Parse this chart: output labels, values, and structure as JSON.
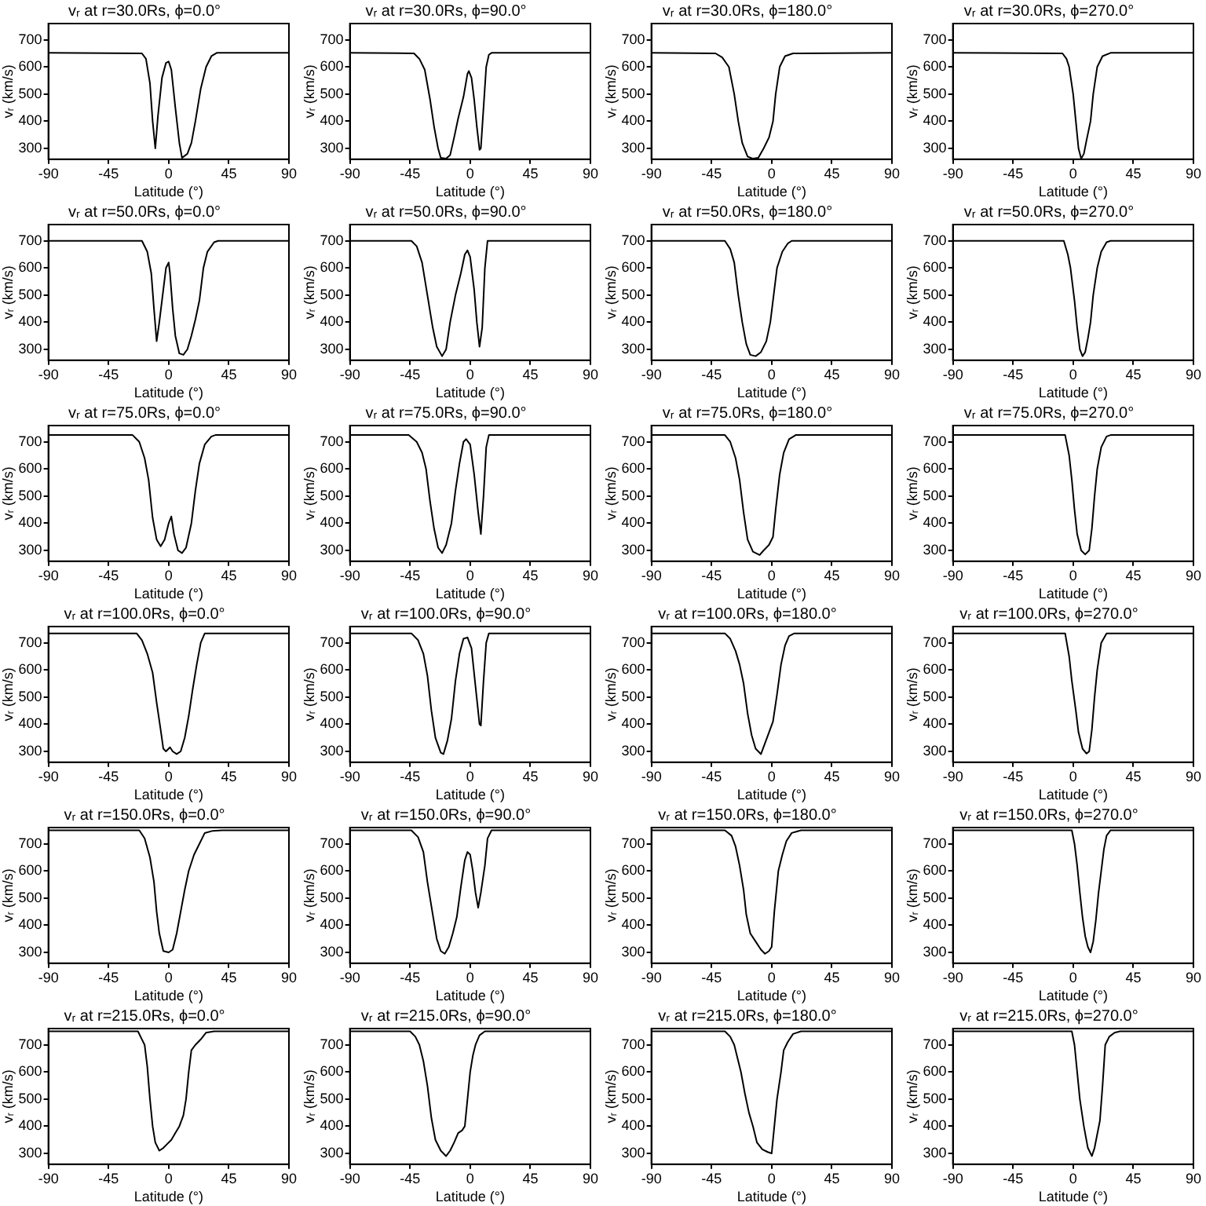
{
  "chart_data": [
    {
      "type": "line",
      "title": "vᵣ at r=30.0Rs, ϕ=0.0°",
      "xlabel": "Latitude (°)",
      "ylabel": "vᵣ (km/s)",
      "color": "#000000",
      "grid": false,
      "xlim": [
        -90,
        90
      ],
      "ylim": [
        260,
        760
      ],
      "xticks": [
        -90,
        -45,
        0,
        45,
        90
      ],
      "yticks": [
        300,
        400,
        500,
        600,
        700
      ],
      "x": [
        -90,
        -20,
        -17,
        -14,
        -12,
        -10,
        -8,
        -5,
        -2,
        0,
        2,
        5,
        8,
        10,
        14,
        17,
        20,
        24,
        28,
        32,
        36,
        90
      ],
      "values": [
        652,
        650,
        630,
        540,
        400,
        300,
        420,
        560,
        615,
        620,
        590,
        450,
        320,
        265,
        280,
        320,
        400,
        520,
        600,
        640,
        652,
        652
      ]
    },
    {
      "type": "line",
      "title": "vᵣ at r=30.0Rs, ϕ=90.0°",
      "xlabel": "Latitude (°)",
      "ylabel": "vᵣ (km/s)",
      "color": "#000000",
      "grid": false,
      "xlim": [
        -90,
        90
      ],
      "ylim": [
        260,
        760
      ],
      "xticks": [
        -90,
        -45,
        0,
        45,
        90
      ],
      "yticks": [
        300,
        400,
        500,
        600,
        700
      ],
      "x": [
        -90,
        -42,
        -38,
        -34,
        -30,
        -27,
        -24,
        -22,
        -18,
        -15,
        -12,
        -9,
        -5,
        -2,
        -1,
        1,
        3,
        5,
        7,
        8,
        10,
        12,
        14,
        16,
        90
      ],
      "values": [
        652,
        650,
        630,
        590,
        480,
        380,
        300,
        265,
        262,
        275,
        340,
        410,
        490,
        575,
        585,
        560,
        480,
        380,
        295,
        300,
        450,
        600,
        645,
        652,
        652
      ]
    },
    {
      "type": "line",
      "title": "vᵣ at r=30.0Rs, ϕ=180.0°",
      "xlabel": "Latitude (°)",
      "ylabel": "vᵣ (km/s)",
      "color": "#000000",
      "grid": false,
      "xlim": [
        -90,
        90
      ],
      "ylim": [
        260,
        760
      ],
      "xticks": [
        -90,
        -45,
        0,
        45,
        90
      ],
      "yticks": [
        300,
        400,
        500,
        600,
        700
      ],
      "x": [
        -90,
        -42,
        -37,
        -32,
        -28,
        -25,
        -22,
        -18,
        -14,
        -10,
        -6,
        -2,
        1,
        3,
        6,
        10,
        16,
        90
      ],
      "values": [
        652,
        650,
        635,
        600,
        500,
        400,
        320,
        270,
        262,
        265,
        300,
        340,
        400,
        500,
        600,
        640,
        650,
        652
      ]
    },
    {
      "type": "line",
      "title": "vᵣ at r=30.0Rs, ϕ=270.0°",
      "xlabel": "Latitude (°)",
      "ylabel": "vᵣ (km/s)",
      "color": "#000000",
      "grid": false,
      "xlim": [
        -90,
        90
      ],
      "ylim": [
        260,
        760
      ],
      "xticks": [
        -90,
        -45,
        0,
        45,
        90
      ],
      "yticks": [
        300,
        400,
        500,
        600,
        700
      ],
      "x": [
        -90,
        -8,
        -5,
        -3,
        0,
        2,
        4,
        6,
        8,
        10,
        13,
        15,
        18,
        22,
        28,
        90
      ],
      "values": [
        652,
        650,
        630,
        600,
        500,
        400,
        300,
        262,
        280,
        330,
        400,
        500,
        600,
        640,
        652,
        652
      ]
    },
    {
      "type": "line",
      "title": "vᵣ at r=50.0Rs, ϕ=0.0°",
      "xlabel": "Latitude (°)",
      "ylabel": "vᵣ (km/s)",
      "color": "#000000",
      "grid": false,
      "xlim": [
        -90,
        90
      ],
      "ylim": [
        260,
        760
      ],
      "xticks": [
        -90,
        -45,
        0,
        45,
        90
      ],
      "yticks": [
        300,
        400,
        500,
        600,
        700
      ],
      "x": [
        -90,
        -20,
        -16,
        -13,
        -11,
        -9,
        -7,
        -4,
        -2,
        0,
        1,
        3,
        5,
        8,
        11,
        14,
        17,
        20,
        23,
        26,
        29,
        34,
        37,
        90
      ],
      "values": [
        700,
        700,
        660,
        580,
        450,
        330,
        400,
        520,
        600,
        620,
        580,
        450,
        350,
        285,
        280,
        300,
        350,
        410,
        480,
        600,
        660,
        695,
        700,
        700
      ]
    },
    {
      "type": "line",
      "title": "vᵣ at r=50.0Rs, ϕ=90.0°",
      "xlabel": "Latitude (°)",
      "ylabel": "vᵣ (km/s)",
      "color": "#000000",
      "grid": false,
      "xlim": [
        -90,
        90
      ],
      "ylim": [
        260,
        760
      ],
      "xticks": [
        -90,
        -45,
        0,
        45,
        90
      ],
      "yticks": [
        300,
        400,
        500,
        600,
        700
      ],
      "x": [
        -90,
        -44,
        -40,
        -36,
        -32,
        -28,
        -25,
        -21,
        -18,
        -15,
        -11,
        -7,
        -4,
        -2,
        0,
        3,
        5,
        7,
        9,
        11,
        13,
        90
      ],
      "values": [
        700,
        700,
        680,
        620,
        500,
        380,
        310,
        275,
        300,
        400,
        500,
        580,
        650,
        665,
        640,
        520,
        400,
        310,
        380,
        600,
        700,
        700
      ]
    },
    {
      "type": "line",
      "title": "vᵣ at r=50.0Rs, ϕ=180.0°",
      "xlabel": "Latitude (°)",
      "ylabel": "vᵣ (km/s)",
      "color": "#000000",
      "grid": false,
      "xlim": [
        -90,
        90
      ],
      "ylim": [
        260,
        760
      ],
      "xticks": [
        -90,
        -45,
        0,
        45,
        90
      ],
      "yticks": [
        300,
        400,
        500,
        600,
        700
      ],
      "x": [
        -90,
        -35,
        -31,
        -28,
        -25,
        -22,
        -19,
        -16,
        -12,
        -8,
        -4,
        -1,
        2,
        4,
        8,
        12,
        15,
        90
      ],
      "values": [
        700,
        700,
        670,
        620,
        500,
        400,
        320,
        280,
        275,
        290,
        330,
        400,
        520,
        600,
        660,
        690,
        700,
        700
      ]
    },
    {
      "type": "line",
      "title": "vᵣ at r=50.0Rs, ϕ=270.0°",
      "xlabel": "Latitude (°)",
      "ylabel": "vᵣ (km/s)",
      "color": "#000000",
      "grid": false,
      "xlim": [
        -90,
        90
      ],
      "ylim": [
        260,
        760
      ],
      "xticks": [
        -90,
        -45,
        0,
        45,
        90
      ],
      "yticks": [
        300,
        400,
        500,
        600,
        700
      ],
      "x": [
        -90,
        -7,
        -4,
        -2,
        1,
        3,
        5,
        7,
        9,
        11,
        13,
        15,
        18,
        21,
        25,
        28,
        90
      ],
      "values": [
        700,
        700,
        650,
        600,
        480,
        380,
        300,
        275,
        290,
        340,
        400,
        500,
        600,
        660,
        695,
        700,
        700
      ]
    },
    {
      "type": "line",
      "title": "vᵣ at r=75.0Rs, ϕ=0.0°",
      "xlabel": "Latitude (°)",
      "ylabel": "vᵣ (km/s)",
      "color": "#000000",
      "grid": false,
      "xlim": [
        -90,
        90
      ],
      "ylim": [
        260,
        760
      ],
      "xticks": [
        -90,
        -45,
        0,
        45,
        90
      ],
      "yticks": [
        300,
        400,
        500,
        600,
        700
      ],
      "x": [
        -90,
        -27,
        -22,
        -18,
        -15,
        -12,
        -9,
        -6,
        -3,
        0,
        2,
        4,
        7,
        10,
        13,
        17,
        20,
        23,
        27,
        32,
        35,
        90
      ],
      "values": [
        725,
        725,
        700,
        640,
        560,
        420,
        340,
        315,
        340,
        400,
        425,
        360,
        300,
        290,
        310,
        400,
        520,
        620,
        690,
        720,
        725,
        725
      ]
    },
    {
      "type": "line",
      "title": "vᵣ at r=75.0Rs, ϕ=90.0°",
      "xlabel": "Latitude (°)",
      "ylabel": "vᵣ (km/s)",
      "color": "#000000",
      "grid": false,
      "xlim": [
        -90,
        90
      ],
      "ylim": [
        260,
        760
      ],
      "xticks": [
        -90,
        -45,
        0,
        45,
        90
      ],
      "yticks": [
        300,
        400,
        500,
        600,
        700
      ],
      "x": [
        -90,
        -46,
        -40,
        -36,
        -33,
        -30,
        -27,
        -24,
        -21,
        -18,
        -14,
        -11,
        -8,
        -5,
        -3,
        0,
        3,
        6,
        8,
        10,
        12,
        14,
        90
      ],
      "values": [
        725,
        725,
        700,
        660,
        600,
        480,
        380,
        310,
        290,
        320,
        400,
        520,
        620,
        700,
        710,
        690,
        580,
        440,
        360,
        500,
        680,
        725,
        725
      ]
    },
    {
      "type": "line",
      "title": "vᵣ at r=75.0Rs, ϕ=180.0°",
      "xlabel": "Latitude (°)",
      "ylabel": "vᵣ (km/s)",
      "color": "#000000",
      "grid": false,
      "xlim": [
        -90,
        90
      ],
      "ylim": [
        260,
        760
      ],
      "xticks": [
        -90,
        -45,
        0,
        45,
        90
      ],
      "yticks": [
        300,
        400,
        500,
        600,
        700
      ],
      "x": [
        -90,
        -35,
        -31,
        -27,
        -24,
        -21,
        -18,
        -14,
        -9,
        -6,
        -2,
        1,
        3,
        6,
        9,
        13,
        18,
        90
      ],
      "values": [
        725,
        725,
        700,
        640,
        560,
        440,
        340,
        295,
        283,
        300,
        320,
        350,
        450,
        580,
        660,
        710,
        725,
        725
      ]
    },
    {
      "type": "line",
      "title": "vᵣ at r=75.0Rs, ϕ=270.0°",
      "xlabel": "Latitude (°)",
      "ylabel": "vᵣ (km/s)",
      "color": "#000000",
      "grid": false,
      "xlim": [
        -90,
        90
      ],
      "ylim": [
        260,
        760
      ],
      "xticks": [
        -90,
        -45,
        0,
        45,
        90
      ],
      "yticks": [
        300,
        400,
        500,
        600,
        700
      ],
      "x": [
        -90,
        -6,
        -3,
        -1,
        1,
        3,
        6,
        9,
        12,
        14,
        16,
        18,
        21,
        25,
        28,
        90
      ],
      "values": [
        725,
        725,
        650,
        560,
        450,
        360,
        300,
        285,
        300,
        380,
        500,
        600,
        680,
        720,
        725,
        725
      ]
    },
    {
      "type": "line",
      "title": "vᵣ at r=100.0Rs, ϕ=0.0°",
      "xlabel": "Latitude (°)",
      "ylabel": "vᵣ (km/s)",
      "color": "#000000",
      "grid": false,
      "xlim": [
        -90,
        90
      ],
      "ylim": [
        260,
        760
      ],
      "xticks": [
        -90,
        -45,
        0,
        45,
        90
      ],
      "yticks": [
        300,
        400,
        500,
        600,
        700
      ],
      "x": [
        -90,
        -24,
        -20,
        -16,
        -12,
        -9,
        -6,
        -4,
        -2,
        1,
        3,
        6,
        9,
        12,
        15,
        18,
        21,
        24,
        27,
        90
      ],
      "values": [
        735,
        735,
        710,
        660,
        590,
        480,
        380,
        310,
        300,
        315,
        300,
        290,
        300,
        350,
        430,
        530,
        620,
        700,
        735,
        735
      ]
    },
    {
      "type": "line",
      "title": "vᵣ at r=100.0Rs, ϕ=90.0°",
      "xlabel": "Latitude (°)",
      "ylabel": "vᵣ (km/s)",
      "color": "#000000",
      "grid": false,
      "xlim": [
        -90,
        90
      ],
      "ylim": [
        260,
        760
      ],
      "xticks": [
        -90,
        -45,
        0,
        45,
        90
      ],
      "yticks": [
        300,
        400,
        500,
        600,
        700
      ],
      "x": [
        -90,
        -44,
        -39,
        -35,
        -32,
        -29,
        -26,
        -22,
        -20,
        -17,
        -14,
        -11,
        -8,
        -5,
        -2,
        1,
        4,
        7,
        8,
        10,
        12,
        14,
        90
      ],
      "values": [
        735,
        735,
        710,
        660,
        580,
        450,
        350,
        295,
        290,
        340,
        420,
        560,
        660,
        715,
        720,
        680,
        540,
        400,
        395,
        560,
        700,
        735,
        735
      ]
    },
    {
      "type": "line",
      "title": "vᵣ at r=100.0Rs, ϕ=180.0°",
      "xlabel": "Latitude (°)",
      "ylabel": "vᵣ (km/s)",
      "color": "#000000",
      "grid": false,
      "xlim": [
        -90,
        90
      ],
      "ylim": [
        260,
        760
      ],
      "xticks": [
        -90,
        -45,
        0,
        45,
        90
      ],
      "yticks": [
        300,
        400,
        500,
        600,
        700
      ],
      "x": [
        -90,
        -35,
        -31,
        -27,
        -24,
        -21,
        -18,
        -15,
        -12,
        -8,
        -5,
        -2,
        1,
        4,
        7,
        10,
        13,
        17,
        90
      ],
      "values": [
        735,
        735,
        715,
        670,
        620,
        550,
        440,
        360,
        310,
        290,
        330,
        370,
        410,
        510,
        620,
        690,
        725,
        735,
        735
      ]
    },
    {
      "type": "line",
      "title": "vᵣ at r=100.0Rs, ϕ=270.0°",
      "xlabel": "Latitude (°)",
      "ylabel": "vᵣ (km/s)",
      "color": "#000000",
      "grid": false,
      "xlim": [
        -90,
        90
      ],
      "ylim": [
        260,
        760
      ],
      "xticks": [
        -90,
        -45,
        0,
        45,
        90
      ],
      "yticks": [
        300,
        400,
        500,
        600,
        700
      ],
      "x": [
        -90,
        -6,
        -3,
        -1,
        2,
        4,
        7,
        10,
        12,
        14,
        16,
        18,
        21,
        25,
        90
      ],
      "values": [
        735,
        735,
        650,
        560,
        450,
        370,
        310,
        292,
        300,
        380,
        500,
        600,
        700,
        735,
        735
      ]
    },
    {
      "type": "line",
      "title": "vᵣ at r=150.0Rs, ϕ=0.0°",
      "xlabel": "Latitude (°)",
      "ylabel": "vᵣ (km/s)",
      "color": "#000000",
      "grid": false,
      "xlim": [
        -90,
        90
      ],
      "ylim": [
        260,
        760
      ],
      "xticks": [
        -90,
        -45,
        0,
        45,
        90
      ],
      "yticks": [
        300,
        400,
        500,
        600,
        700
      ],
      "x": [
        -90,
        -22,
        -18,
        -14,
        -11,
        -9,
        -7,
        -4,
        0,
        3,
        6,
        9,
        12,
        15,
        19,
        23,
        27,
        33,
        40,
        90
      ],
      "values": [
        750,
        750,
        720,
        650,
        560,
        450,
        370,
        305,
        300,
        310,
        370,
        450,
        530,
        600,
        660,
        700,
        740,
        748,
        750,
        750
      ]
    },
    {
      "type": "line",
      "title": "vᵣ at r=150.0Rs, ϕ=90.0°",
      "xlabel": "Latitude (°)",
      "ylabel": "vᵣ (km/s)",
      "color": "#000000",
      "grid": false,
      "xlim": [
        -90,
        90
      ],
      "ylim": [
        260,
        760
      ],
      "xticks": [
        -90,
        -45,
        0,
        45,
        90
      ],
      "yticks": [
        300,
        400,
        500,
        600,
        700
      ],
      "x": [
        -90,
        -44,
        -39,
        -35,
        -32,
        -28,
        -25,
        -22,
        -19,
        -16,
        -13,
        -10,
        -7,
        -4,
        -2,
        0,
        2,
        4,
        6,
        8,
        11,
        13,
        16,
        90
      ],
      "values": [
        750,
        750,
        725,
        670,
        560,
        440,
        350,
        305,
        295,
        320,
        370,
        430,
        540,
        640,
        670,
        660,
        600,
        520,
        465,
        520,
        620,
        720,
        750,
        750
      ]
    },
    {
      "type": "line",
      "title": "vᵣ at r=150.0Rs, ϕ=180.0°",
      "xlabel": "Latitude (°)",
      "ylabel": "vᵣ (km/s)",
      "color": "#000000",
      "grid": false,
      "xlim": [
        -90,
        90
      ],
      "ylim": [
        260,
        760
      ],
      "xticks": [
        -90,
        -45,
        0,
        45,
        90
      ],
      "yticks": [
        300,
        400,
        500,
        600,
        700
      ],
      "x": [
        -90,
        -35,
        -30,
        -27,
        -24,
        -21,
        -19,
        -16,
        -12,
        -8,
        -5,
        -2,
        0,
        2,
        5,
        8,
        11,
        15,
        22,
        90
      ],
      "values": [
        750,
        750,
        730,
        690,
        620,
        530,
        440,
        370,
        340,
        310,
        295,
        305,
        320,
        450,
        600,
        660,
        710,
        740,
        750,
        750
      ]
    },
    {
      "type": "line",
      "title": "vᵣ at r=150.0Rs, ϕ=270.0°",
      "xlabel": "Latitude (°)",
      "ylabel": "vᵣ (km/s)",
      "color": "#000000",
      "grid": false,
      "xlim": [
        -90,
        90
      ],
      "ylim": [
        260,
        760
      ],
      "xticks": [
        -90,
        -45,
        0,
        45,
        90
      ],
      "yticks": [
        300,
        400,
        500,
        600,
        700
      ],
      "x": [
        -90,
        -1,
        1,
        3,
        5,
        7,
        9,
        11,
        13,
        15,
        17,
        19,
        21,
        23,
        25,
        28,
        90
      ],
      "values": [
        750,
        750,
        700,
        620,
        520,
        430,
        360,
        320,
        300,
        340,
        420,
        520,
        600,
        680,
        730,
        750,
        750
      ]
    },
    {
      "type": "line",
      "title": "vᵣ at r=215.0Rs, ϕ=0.0°",
      "xlabel": "Latitude (°)",
      "ylabel": "vᵣ (km/s)",
      "color": "#000000",
      "grid": false,
      "xlim": [
        -90,
        90
      ],
      "ylim": [
        260,
        760
      ],
      "xticks": [
        -90,
        -45,
        0,
        45,
        90
      ],
      "yticks": [
        300,
        400,
        500,
        600,
        700
      ],
      "x": [
        -90,
        -23,
        -20,
        -18,
        -16,
        -14,
        -12,
        -10,
        -7,
        -4,
        -1,
        2,
        5,
        8,
        11,
        13,
        15,
        17,
        20,
        24,
        28,
        34,
        90
      ],
      "values": [
        750,
        750,
        720,
        700,
        620,
        500,
        400,
        340,
        310,
        320,
        335,
        350,
        375,
        400,
        440,
        500,
        600,
        680,
        700,
        720,
        745,
        750,
        750
      ]
    },
    {
      "type": "line",
      "title": "vᵣ at r=215.0Rs, ϕ=90.0°",
      "xlabel": "Latitude (°)",
      "ylabel": "vᵣ (km/s)",
      "color": "#000000",
      "grid": false,
      "xlim": [
        -90,
        90
      ],
      "ylim": [
        260,
        760
      ],
      "xticks": [
        -90,
        -45,
        0,
        45,
        90
      ],
      "yticks": [
        300,
        400,
        500,
        600,
        700
      ],
      "x": [
        -90,
        -45,
        -41,
        -38,
        -35,
        -32,
        -29,
        -26,
        -22,
        -18,
        -15,
        -12,
        -9,
        -6,
        -4,
        -2,
        0,
        2,
        4,
        7,
        11,
        90
      ],
      "values": [
        750,
        750,
        730,
        700,
        640,
        550,
        430,
        350,
        310,
        290,
        310,
        340,
        375,
        385,
        400,
        500,
        600,
        660,
        700,
        735,
        750,
        750
      ]
    },
    {
      "type": "line",
      "title": "vᵣ at r=215.0Rs, ϕ=180.0°",
      "xlabel": "Latitude (°)",
      "ylabel": "vᵣ (km/s)",
      "color": "#000000",
      "grid": false,
      "xlim": [
        -90,
        90
      ],
      "ylim": [
        260,
        760
      ],
      "xticks": [
        -90,
        -45,
        0,
        45,
        90
      ],
      "yticks": [
        300,
        400,
        500,
        600,
        700
      ],
      "x": [
        -90,
        -35,
        -31,
        -28,
        -25,
        -23,
        -20,
        -17,
        -14,
        -11,
        -7,
        -3,
        0,
        2,
        4,
        7,
        9,
        12,
        16,
        22,
        90
      ],
      "values": [
        750,
        750,
        730,
        700,
        640,
        600,
        520,
        450,
        400,
        340,
        315,
        305,
        300,
        400,
        500,
        600,
        680,
        710,
        740,
        750,
        750
      ]
    },
    {
      "type": "line",
      "title": "vᵣ at r=215.0Rs, ϕ=270.0°",
      "xlabel": "Latitude (°)",
      "ylabel": "vᵣ (km/s)",
      "color": "#000000",
      "grid": false,
      "xlim": [
        -90,
        90
      ],
      "ylim": [
        260,
        760
      ],
      "xticks": [
        -90,
        -45,
        0,
        45,
        90
      ],
      "yticks": [
        300,
        400,
        500,
        600,
        700
      ],
      "x": [
        -90,
        -1,
        1,
        3,
        5,
        8,
        11,
        14,
        16,
        18,
        20,
        22,
        24,
        27,
        31,
        35,
        90
      ],
      "values": [
        750,
        750,
        700,
        600,
        500,
        400,
        320,
        290,
        320,
        370,
        420,
        550,
        700,
        730,
        745,
        750,
        750
      ]
    }
  ]
}
